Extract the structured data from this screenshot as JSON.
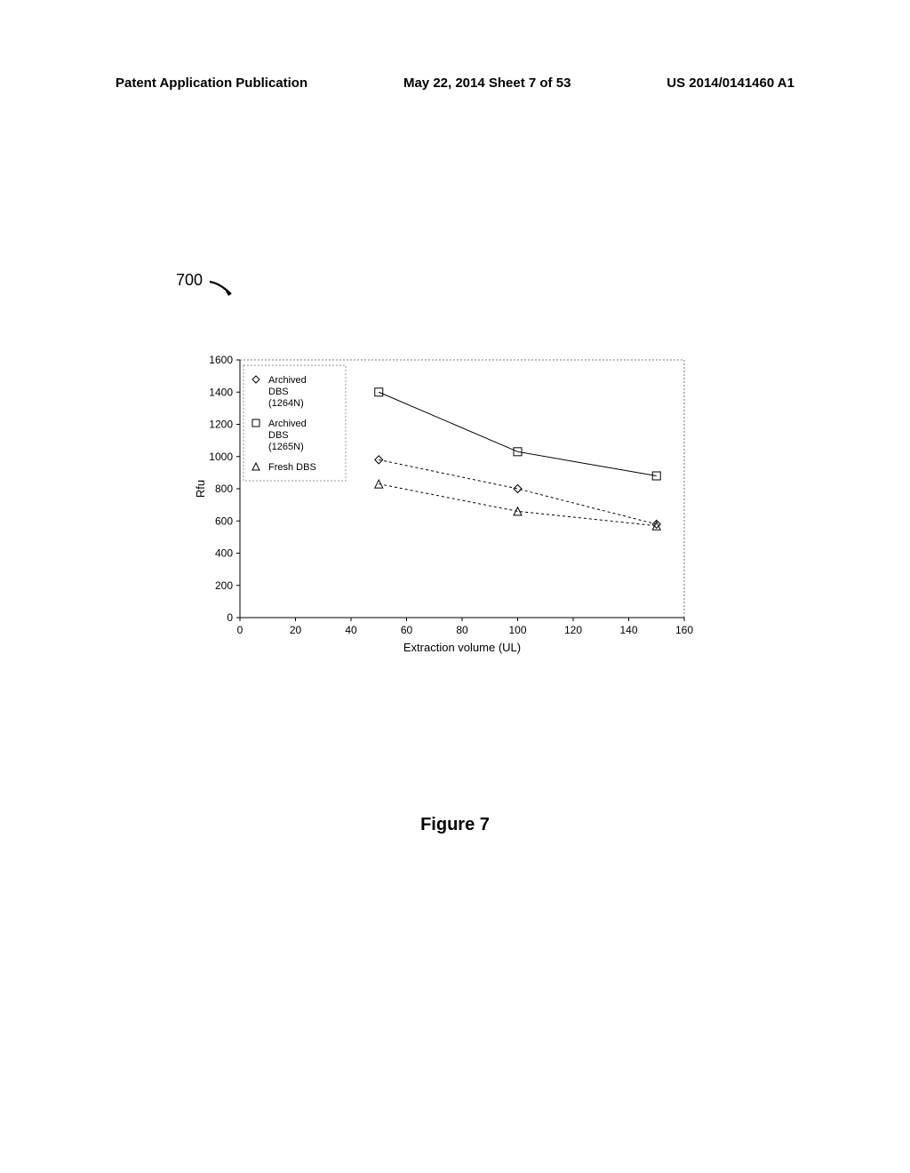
{
  "header": {
    "left": "Patent Application Publication",
    "center": "May 22, 2014  Sheet 7 of 53",
    "right": "US 2014/0141460 A1"
  },
  "figure_ref": "700",
  "figure_caption": "Figure 7",
  "chart": {
    "type": "line-scatter",
    "ylabel": "Rfu",
    "xlabel": "Extraction volume (UL)",
    "xlim": [
      0,
      160
    ],
    "ylim": [
      0,
      1600
    ],
    "xtick_step": 20,
    "ytick_step": 200,
    "xticks": [
      0,
      20,
      40,
      60,
      80,
      100,
      120,
      140,
      160
    ],
    "yticks": [
      0,
      200,
      400,
      600,
      800,
      1000,
      1200,
      1400,
      1600
    ],
    "background_color": "#ffffff",
    "axis_color": "#505050",
    "series": [
      {
        "name": "Archived DBS (1264N)",
        "marker": "diamond",
        "color": "#000000",
        "line_style": "dotted",
        "x": [
          50,
          100,
          150
        ],
        "y": [
          980,
          800,
          580
        ]
      },
      {
        "name": "Archived DBS (1265N)",
        "marker": "square",
        "color": "#000000",
        "line_style": "solid",
        "x": [
          50,
          100,
          150
        ],
        "y": [
          1400,
          1030,
          880
        ]
      },
      {
        "name": "Fresh DBS",
        "marker": "triangle",
        "color": "#000000",
        "line_style": "dotted",
        "x": [
          50,
          100,
          150
        ],
        "y": [
          830,
          660,
          570
        ]
      }
    ],
    "legend": {
      "border_style": "dotted",
      "items": [
        {
          "marker": "diamond",
          "label_lines": [
            "Archived",
            "DBS",
            "(1264N)"
          ]
        },
        {
          "marker": "square",
          "label_lines": [
            "Archived",
            "DBS",
            "(1265N)"
          ]
        },
        {
          "marker": "triangle",
          "label_lines": [
            "Fresh DBS"
          ]
        }
      ]
    }
  }
}
